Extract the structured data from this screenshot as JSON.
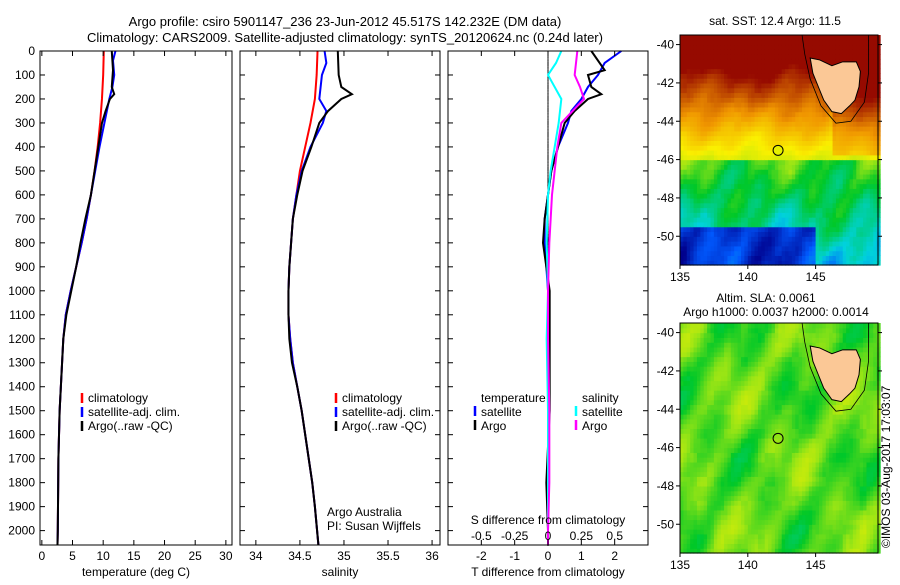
{
  "title": {
    "line1": "Argo profile: csiro 5901147_236 23-Jun-2012 45.517S 142.232E (DM data)",
    "line2": "Climatology: CARS2009. Satellite-adjusted climatology: synTS_20120624.nc (0.24d later)"
  },
  "credit": "©IMOS 03-Aug-2017 17:03:07",
  "chart_data": [
    {
      "type": "line",
      "id": "temperature",
      "xlabel": "temperature (deg C)",
      "ylabel": "",
      "xlim": [
        -0.3,
        31
      ],
      "ylim": [
        0,
        2060
      ],
      "xticks": [
        0,
        5,
        10,
        15,
        20,
        25,
        30
      ],
      "yticks": [
        0,
        100,
        200,
        300,
        400,
        500,
        600,
        700,
        800,
        900,
        1000,
        1100,
        1200,
        1300,
        1400,
        1500,
        1600,
        1700,
        1800,
        1900,
        2000
      ],
      "legend": {
        "placement": "lower-left",
        "entries": [
          "climatology",
          "satellite-adj. clim.",
          "Argo(..raw -QC)"
        ]
      },
      "series": [
        {
          "name": "climatology",
          "color": "#ff0000",
          "depth": [
            0,
            100,
            200,
            300,
            400,
            500,
            600,
            700,
            800,
            900,
            1000,
            1100,
            1200,
            1300,
            1400,
            1500,
            1700,
            2000,
            2060
          ],
          "values": [
            10.1,
            10.0,
            9.8,
            9.5,
            9.1,
            8.6,
            8.0,
            7.3,
            6.5,
            5.6,
            4.7,
            3.9,
            3.5,
            3.3,
            3.1,
            2.9,
            2.7,
            2.6,
            2.55
          ]
        },
        {
          "name": "satellite-adj. clim.",
          "color": "#0000ff",
          "depth": [
            0,
            40,
            100,
            150,
            200,
            300,
            400,
            500,
            600,
            700,
            800,
            900,
            1000,
            1100,
            1200,
            1300,
            1400,
            1500,
            1700,
            2000,
            2060
          ],
          "values": [
            12.0,
            11.6,
            11.8,
            11.5,
            11.0,
            10.2,
            9.4,
            8.7,
            8.0,
            7.3,
            6.5,
            5.6,
            4.7,
            3.9,
            3.5,
            3.3,
            3.1,
            2.9,
            2.7,
            2.6,
            2.55
          ]
        },
        {
          "name": "Argo(..raw -QC)",
          "color": "#000000",
          "depth": [
            0,
            80,
            150,
            180,
            200,
            250,
            300,
            400,
            500,
            600,
            700,
            800,
            900,
            1000,
            1100,
            1200,
            1300,
            1400,
            1500,
            1700,
            2000,
            2060
          ],
          "values": [
            11.4,
            11.6,
            11.4,
            11.8,
            11.1,
            10.4,
            9.8,
            9.2,
            8.6,
            8.0,
            7.1,
            6.3,
            5.6,
            4.8,
            4.0,
            3.5,
            3.3,
            3.1,
            2.9,
            2.7,
            2.6,
            2.55
          ]
        }
      ]
    },
    {
      "type": "line",
      "id": "salinity",
      "xlabel": "salinity",
      "xlim": [
        33.82,
        36.09
      ],
      "ylim": [
        0,
        2060
      ],
      "xticks": [
        34,
        34.5,
        35,
        35.5,
        36
      ],
      "legend": {
        "placement": "lower-right",
        "entries": [
          "climatology",
          "satellite-adj. clim.",
          "Argo(..raw -QC)"
        ]
      },
      "annotation": [
        "Argo Australia",
        "PI: Susan Wijffels"
      ],
      "series": [
        {
          "name": "climatology",
          "color": "#ff0000",
          "depth": [
            0,
            100,
            200,
            300,
            400,
            500,
            600,
            700,
            800,
            900,
            1000,
            1100,
            1200,
            1300,
            1400,
            1500,
            1600,
            1700,
            1800,
            1900,
            2060
          ],
          "values": [
            34.7,
            34.69,
            34.67,
            34.62,
            34.56,
            34.5,
            34.46,
            34.42,
            34.4,
            34.38,
            34.37,
            34.37,
            34.39,
            34.42,
            34.47,
            34.52,
            34.56,
            34.6,
            34.64,
            34.67,
            34.71
          ]
        },
        {
          "name": "satellite-adj. clim.",
          "color": "#0000ff",
          "depth": [
            0,
            50,
            100,
            200,
            250,
            300,
            400,
            500,
            600,
            700,
            800,
            900,
            1000,
            1100,
            1200,
            1300,
            1400,
            1500,
            1600,
            1700,
            1800,
            1900,
            2060
          ],
          "values": [
            34.78,
            34.8,
            34.75,
            34.72,
            34.8,
            34.76,
            34.62,
            34.52,
            34.46,
            34.42,
            34.4,
            34.38,
            34.37,
            34.37,
            34.39,
            34.42,
            34.47,
            34.52,
            34.56,
            34.6,
            34.64,
            34.67,
            34.71
          ]
        },
        {
          "name": "Argo(..raw -QC)",
          "color": "#000000",
          "depth": [
            0,
            100,
            150,
            180,
            200,
            250,
            300,
            400,
            500,
            600,
            700,
            800,
            900,
            1000,
            1100,
            1200,
            1300,
            1400,
            1500,
            1600,
            1700,
            1800,
            1900,
            2060
          ],
          "values": [
            34.93,
            34.94,
            34.97,
            35.09,
            34.97,
            34.82,
            34.72,
            34.63,
            34.53,
            34.47,
            34.42,
            34.4,
            34.38,
            34.37,
            34.37,
            34.38,
            34.41,
            34.47,
            34.52,
            34.56,
            34.6,
            34.64,
            34.67,
            34.71
          ]
        }
      ]
    },
    {
      "type": "line",
      "id": "difference",
      "xlabel": "T difference from climatology",
      "x2label": "S difference from climatology",
      "xlim": [
        -3.0,
        3.0
      ],
      "ylim": [
        0,
        2060
      ],
      "xticks": [
        -2,
        -1,
        0,
        1,
        2
      ],
      "x2ticks": [
        "-0.5",
        "-0.25",
        "0",
        "0.25",
        "0.5"
      ],
      "x2ticks_values": [
        -0.5,
        -0.25,
        0,
        0.25,
        0.5
      ],
      "s_to_t_scale": 4,
      "legend": {
        "placement": "lower",
        "temperature_title": "temperature",
        "salinity_title": "salinity",
        "entries": [
          "satellite",
          "Argo",
          "satellite",
          "Argo"
        ]
      },
      "series": [
        {
          "name": "satellite",
          "group": "temperature",
          "color": "#0000ff",
          "scale": 1,
          "depth": [
            0,
            50,
            100,
            150,
            200,
            250,
            300,
            400,
            500,
            600,
            700,
            800,
            900,
            1000,
            1200,
            1500,
            2000,
            2060
          ],
          "values": [
            2.2,
            1.7,
            1.5,
            1.2,
            1.0,
            0.7,
            0.6,
            0.3,
            0.1,
            0.0,
            -0.1,
            -0.1,
            -0.05,
            0.0,
            0.02,
            0.02,
            0.0,
            0.0
          ]
        },
        {
          "name": "Argo",
          "group": "temperature",
          "color": "#000000",
          "scale": 1,
          "depth": [
            0,
            80,
            100,
            150,
            180,
            200,
            250,
            300,
            400,
            500,
            600,
            700,
            800,
            900,
            1000,
            1200,
            1500,
            1800,
            2000,
            2060
          ],
          "values": [
            1.3,
            1.7,
            1.2,
            1.3,
            1.6,
            1.2,
            0.8,
            0.5,
            0.3,
            0.1,
            0.0,
            -0.1,
            -0.15,
            -0.05,
            0.05,
            0.05,
            0.05,
            -0.05,
            0.0,
            0.0
          ]
        },
        {
          "name": "satellite",
          "group": "salinity",
          "color": "#00ffff",
          "scale": 4,
          "depth": [
            0,
            50,
            100,
            200,
            300,
            400,
            500,
            600,
            800,
            1000,
            1200,
            1500,
            1800,
            2000,
            2060
          ],
          "values": [
            0.1,
            0.06,
            0.0,
            0.1,
            0.08,
            0.05,
            0.02,
            0.0,
            -0.01,
            0.0,
            -0.01,
            0.0,
            0.0,
            0.0,
            0.0
          ]
        },
        {
          "name": "Argo",
          "group": "salinity",
          "color": "#ff00ff",
          "scale": 4,
          "depth": [
            0,
            100,
            150,
            200,
            300,
            400,
            500,
            600,
            800,
            1000,
            1200,
            1500,
            1800,
            2000,
            2060
          ],
          "values": [
            0.22,
            0.2,
            0.24,
            0.27,
            0.1,
            0.07,
            0.05,
            0.03,
            0.01,
            0.0,
            0.0,
            0.01,
            0.01,
            0.0,
            0.0
          ]
        }
      ]
    },
    {
      "type": "heatmap",
      "id": "sst-map",
      "title": "sat. SST: 12.4 Argo: 11.5",
      "xlim": [
        135,
        149.6
      ],
      "ylim": [
        -51.5,
        -39.5
      ],
      "xticks": [
        135,
        140,
        145
      ],
      "yticks": [
        -40,
        -42,
        -44,
        -46,
        -48,
        -50
      ],
      "argo_position": {
        "lon": 142.232,
        "lat": -45.517
      }
    },
    {
      "type": "heatmap",
      "id": "sla-map",
      "title_line1": "Altim. SLA: 0.0061",
      "title_line2": "Argo h1000: 0.0037 h2000: 0.0014",
      "xlim": [
        135,
        149.6
      ],
      "ylim": [
        -51.5,
        -39.5
      ],
      "xticks": [
        135,
        140,
        145
      ],
      "yticks": [
        -40,
        -42,
        -44,
        -46,
        -48,
        -50
      ],
      "argo_position": {
        "lon": 142.232,
        "lat": -45.517
      }
    }
  ]
}
